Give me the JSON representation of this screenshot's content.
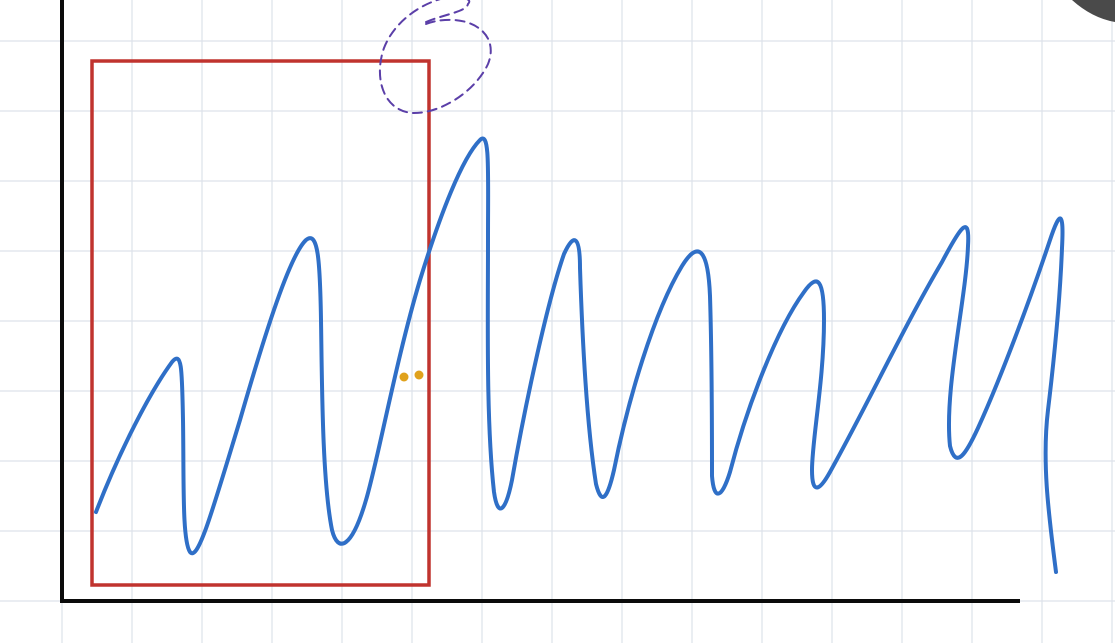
{
  "canvas": {
    "background": "#ffffff",
    "grid_color": "#dde2ea",
    "axis_color": "#0b0b0b",
    "highlight_rect_color": "#c0332e",
    "curve_color": "#2f6fc7",
    "annotation_color": "#5b3fa8",
    "dot_color": "#e0a21c",
    "corner_mark_color": "#4a4a4a",
    "grid": true
  },
  "annotations": {
    "icons": [
      "dashed-swirl-icon",
      "cursor-dots-icon",
      "corner-tool-icon"
    ]
  }
}
